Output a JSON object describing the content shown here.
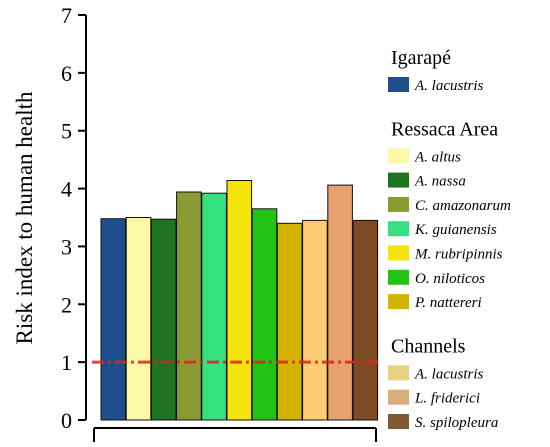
{
  "chart_data": {
    "type": "bar",
    "ylabel": "Risk index to human health",
    "ylim": [
      0,
      7
    ],
    "yticks": [
      0,
      1,
      2,
      3,
      4,
      5,
      6,
      7
    ],
    "reference_line": {
      "y": 1,
      "color": "#e0241b",
      "style": "dash-dot"
    },
    "series": [
      {
        "group": "Igarapé",
        "name": "A. lacustris",
        "value": 3.48,
        "color": "#1f4e8c"
      },
      {
        "group": "Ressaca Area",
        "name": "A. altus",
        "value": 3.5,
        "color": "#fbf8a6"
      },
      {
        "group": "Ressaca Area",
        "name": "A. nassa",
        "value": 3.47,
        "color": "#1e7420"
      },
      {
        "group": "Ressaca Area",
        "name": "C. amazonarum",
        "value": 3.94,
        "color": "#8b9b34"
      },
      {
        "group": "Ressaca Area",
        "name": "K. guianensis",
        "value": 3.92,
        "color": "#35e07f"
      },
      {
        "group": "Ressaca Area",
        "name": "M. rubripinnis",
        "value": 4.14,
        "color": "#f5e40a"
      },
      {
        "group": "Ressaca Area",
        "name": "O. niloticos",
        "value": 3.65,
        "color": "#22c313"
      },
      {
        "group": "Ressaca Area",
        "name": "P. nattereri",
        "value": 3.4,
        "color": "#d2b400"
      },
      {
        "group": "Channels",
        "name": "A. lacustris",
        "value": 3.45,
        "color": "#fccd72"
      },
      {
        "group": "Channels",
        "name": "L. friderici",
        "value": 4.06,
        "color": "#e7a06e"
      },
      {
        "group": "Channels",
        "name": "S. spilopleura",
        "value": 3.45,
        "color": "#7e4a22"
      }
    ],
    "legend": {
      "placement": "right",
      "groups": [
        {
          "title": "Igarapé",
          "entries": [
            {
              "label": "A. lacustris",
              "color": "#1f4e8c"
            }
          ]
        },
        {
          "title": "Ressaca Area",
          "entries": [
            {
              "label": "A. altus",
              "color": "#fbf8a6"
            },
            {
              "label": "A. nassa",
              "color": "#1e7420"
            },
            {
              "label": "C. amazonarum",
              "color": "#8b9b34"
            },
            {
              "label": "K. guianensis",
              "color": "#35e07f"
            },
            {
              "label": "M. rubripinnis",
              "color": "#f5e40a"
            },
            {
              "label": "O. niloticos",
              "color": "#22c313"
            },
            {
              "label": "P. nattereri",
              "color": "#d2b400"
            }
          ]
        },
        {
          "title": "Channels",
          "entries": [
            {
              "label": "A. lacustris",
              "color": "#e9d27e"
            },
            {
              "label": "L. friderici",
              "color": "#d9ad7a"
            },
            {
              "label": "S. spilopleura",
              "color": "#7e5a33"
            }
          ]
        }
      ]
    }
  }
}
